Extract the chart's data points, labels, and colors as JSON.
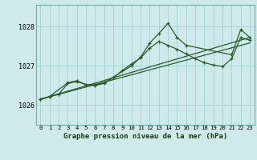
{
  "title": "Graphe pression niveau de la mer (hPa)",
  "bg_color": "#ceeaea",
  "grid_color": "#aad4d4",
  "line_color": "#2d5a2d",
  "xlim": [
    -0.5,
    23.5
  ],
  "ylim": [
    1025.5,
    1028.55
  ],
  "yticks": [
    1026,
    1027,
    1028
  ],
  "xticks": [
    0,
    1,
    2,
    3,
    4,
    5,
    6,
    7,
    8,
    9,
    10,
    11,
    12,
    13,
    14,
    15,
    16,
    17,
    18,
    19,
    20,
    21,
    22,
    23
  ],
  "series_peak": [
    [
      0,
      1026.15
    ],
    [
      1,
      1026.22
    ],
    [
      3,
      1026.57
    ],
    [
      4,
      1026.62
    ],
    [
      5,
      1026.52
    ],
    [
      6,
      1026.52
    ],
    [
      7,
      1026.57
    ],
    [
      10,
      1027.0
    ],
    [
      11,
      1027.22
    ],
    [
      12,
      1027.58
    ],
    [
      13,
      1027.82
    ],
    [
      14,
      1028.08
    ],
    [
      15,
      1027.72
    ],
    [
      16,
      1027.52
    ],
    [
      21,
      1027.28
    ],
    [
      22,
      1027.92
    ],
    [
      23,
      1027.72
    ]
  ],
  "series_smooth": [
    [
      0,
      1026.15
    ],
    [
      1,
      1026.22
    ],
    [
      2,
      1026.28
    ],
    [
      3,
      1026.55
    ],
    [
      4,
      1026.6
    ],
    [
      5,
      1026.52
    ],
    [
      6,
      1026.5
    ],
    [
      7,
      1026.55
    ],
    [
      8,
      1026.7
    ],
    [
      9,
      1026.88
    ],
    [
      10,
      1027.05
    ],
    [
      11,
      1027.2
    ],
    [
      12,
      1027.45
    ],
    [
      13,
      1027.62
    ],
    [
      14,
      1027.52
    ],
    [
      15,
      1027.42
    ],
    [
      16,
      1027.3
    ],
    [
      17,
      1027.18
    ],
    [
      18,
      1027.08
    ],
    [
      19,
      1027.02
    ],
    [
      20,
      1026.98
    ],
    [
      21,
      1027.18
    ],
    [
      22,
      1027.72
    ],
    [
      23,
      1027.65
    ]
  ],
  "linear1": [
    [
      0,
      1026.15
    ],
    [
      23,
      1027.72
    ]
  ],
  "linear2": [
    [
      0,
      1026.15
    ],
    [
      23,
      1027.58
    ]
  ]
}
